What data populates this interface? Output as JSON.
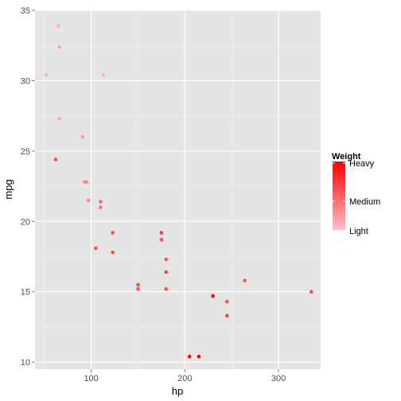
{
  "chart_data": {
    "type": "scatter",
    "title": "",
    "xlabel": "hp",
    "ylabel": "mpg",
    "xlim": [
      40,
      345
    ],
    "ylim": [
      9.5,
      35
    ],
    "xticks": [
      100,
      200,
      300
    ],
    "yticks": [
      10,
      15,
      20,
      25,
      30,
      35
    ],
    "grid": true,
    "legend": {
      "title": "Weight",
      "position": "right",
      "labels": [
        "Heavy",
        "Medium",
        "Light"
      ],
      "color_high": "#ff0000",
      "color_low": "#ffc0cb"
    },
    "points": [
      {
        "x": 110,
        "y": 21.0,
        "w": 0.43
      },
      {
        "x": 110,
        "y": 21.4,
        "w": 0.42
      },
      {
        "x": 93,
        "y": 22.8,
        "w": 0.3
      },
      {
        "x": 95,
        "y": 22.8,
        "w": 0.3
      },
      {
        "x": 110,
        "y": 21.4,
        "w": 0.49
      },
      {
        "x": 175,
        "y": 18.7,
        "w": 0.6
      },
      {
        "x": 105,
        "y": 18.1,
        "w": 0.6
      },
      {
        "x": 245,
        "y": 14.3,
        "w": 0.63
      },
      {
        "x": 62,
        "y": 24.4,
        "w": 0.59
      },
      {
        "x": 97,
        "y": 21.5,
        "w": 0.39
      },
      {
        "x": 123,
        "y": 19.2,
        "w": 0.59
      },
      {
        "x": 123,
        "y": 17.8,
        "w": 0.59
      },
      {
        "x": 180,
        "y": 16.4,
        "w": 0.67
      },
      {
        "x": 180,
        "y": 17.3,
        "w": 0.6
      },
      {
        "x": 180,
        "y": 15.2,
        "w": 0.61
      },
      {
        "x": 205,
        "y": 10.4,
        "w": 0.98
      },
      {
        "x": 215,
        "y": 10.4,
        "w": 1.0
      },
      {
        "x": 230,
        "y": 14.7,
        "w": 0.96
      },
      {
        "x": 66,
        "y": 32.4,
        "w": 0.17
      },
      {
        "x": 52,
        "y": 30.4,
        "w": 0.08
      },
      {
        "x": 65,
        "y": 33.9,
        "w": 0.12
      },
      {
        "x": 97,
        "y": 21.5,
        "w": 0.27
      },
      {
        "x": 150,
        "y": 15.5,
        "w": 0.62
      },
      {
        "x": 150,
        "y": 15.2,
        "w": 0.6
      },
      {
        "x": 245,
        "y": 13.3,
        "w": 0.7
      },
      {
        "x": 175,
        "y": 19.2,
        "w": 0.7
      },
      {
        "x": 66,
        "y": 27.3,
        "w": 0.13
      },
      {
        "x": 91,
        "y": 26.0,
        "w": 0.2
      },
      {
        "x": 113,
        "y": 30.4,
        "w": 0.05
      },
      {
        "x": 264,
        "y": 15.8,
        "w": 0.56
      },
      {
        "x": 335,
        "y": 15.0,
        "w": 0.6
      }
    ]
  }
}
